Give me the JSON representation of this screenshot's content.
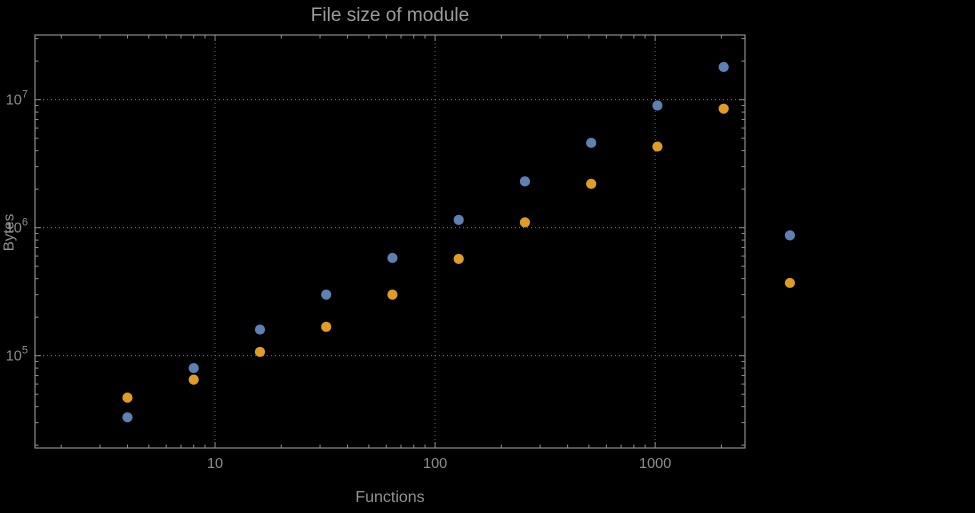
{
  "style": {
    "background": "#000000",
    "frame_color": "#8d8d8d",
    "grid_color": "#6b6b6b",
    "tick_label_color": "#8f8f8f",
    "title_color": "#9c9c9c",
    "axis_label_color": "#929292"
  },
  "chart_data": {
    "type": "scatter",
    "title": "File size of module",
    "xlabel": "Functions",
    "ylabel": "Bytes",
    "x_scale": "log",
    "y_scale": "log",
    "grid": true,
    "grid_style": "dotted",
    "frame": true,
    "legend_position": "none",
    "xlim": [
      1.52,
      2560
    ],
    "ylim": [
      19000,
      32000000
    ],
    "x_ticks": [
      10,
      100,
      1000
    ],
    "x_tick_labels": [
      "10",
      "100",
      "1000"
    ],
    "y_ticks": [
      100000,
      1000000,
      10000000
    ],
    "y_tick_labels": [
      "10^5",
      "10^6",
      "10^7"
    ],
    "x": [
      4,
      8,
      16,
      32,
      64,
      128,
      256,
      512,
      1024,
      2048,
      4096
    ],
    "series": [
      {
        "name": "blue",
        "color": "#5E81B5",
        "values": [
          33000,
          80000,
          160000,
          300000,
          580000,
          1150000,
          2300000,
          4600000,
          9000000,
          18000000,
          870000
        ]
      },
      {
        "name": "orange",
        "color": "#E19C24",
        "values": [
          47000,
          65000,
          107000,
          168000,
          300000,
          570000,
          1100000,
          2200000,
          4300000,
          8500000,
          370000
        ]
      }
    ]
  }
}
